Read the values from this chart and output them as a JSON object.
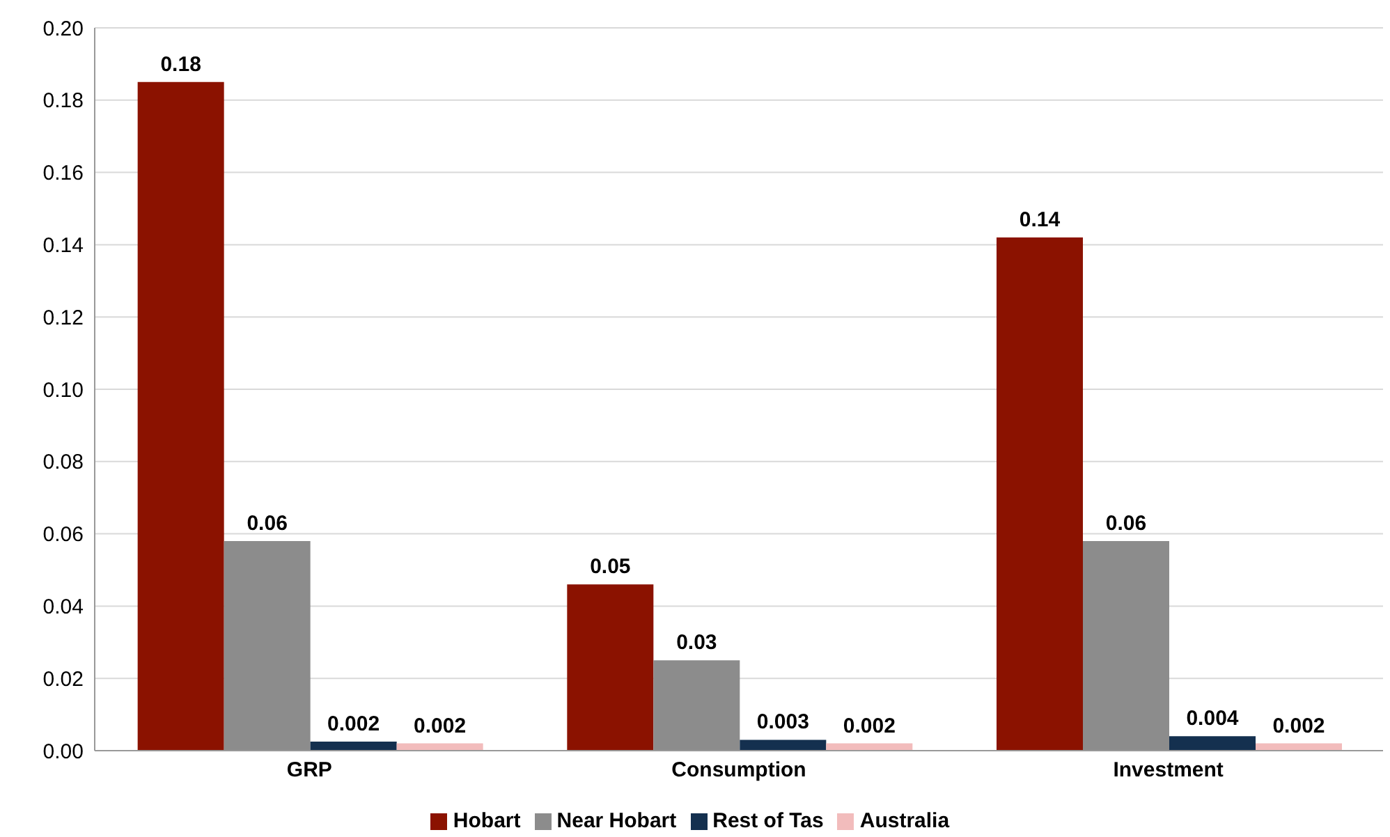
{
  "chart_data": {
    "type": "bar",
    "categories": [
      "GRP",
      "Consumption",
      "Investment"
    ],
    "series": [
      {
        "name": "Hobart",
        "color": "#8b1200",
        "values": [
          0.185,
          0.046,
          0.142
        ],
        "value_labels": [
          "0.18",
          "0.05",
          "0.14"
        ]
      },
      {
        "name": "Near Hobart",
        "color": "#8c8c8c",
        "values": [
          0.058,
          0.025,
          0.058
        ],
        "value_labels": [
          "0.06",
          "0.03",
          "0.06"
        ]
      },
      {
        "name": "Rest of Tas",
        "color": "#14304f",
        "values": [
          0.0025,
          0.003,
          0.004
        ],
        "value_labels": [
          "0.002",
          "0.003",
          "0.004"
        ]
      },
      {
        "name": "Australia",
        "color": "#f2bcbc",
        "values": [
          0.002,
          0.002,
          0.002
        ],
        "value_labels": [
          "0.002",
          "0.002",
          "0.002"
        ]
      }
    ],
    "ylim": [
      0,
      0.2
    ],
    "yticks": [
      {
        "value": 0,
        "label": "0.00"
      },
      {
        "value": 0.02,
        "label": "0.02"
      },
      {
        "value": 0.04,
        "label": "0.04"
      },
      {
        "value": 0.06,
        "label": "0.06"
      },
      {
        "value": 0.08,
        "label": "0.08"
      },
      {
        "value": 0.1,
        "label": "0.10"
      },
      {
        "value": 0.12,
        "label": "0.12"
      },
      {
        "value": 0.14,
        "label": "0.14"
      },
      {
        "value": 0.16,
        "label": "0.16"
      },
      {
        "value": 0.18,
        "label": "0.18"
      },
      {
        "value": 0.2,
        "label": "0.20"
      }
    ],
    "grid": "y",
    "legend": "bottom"
  }
}
